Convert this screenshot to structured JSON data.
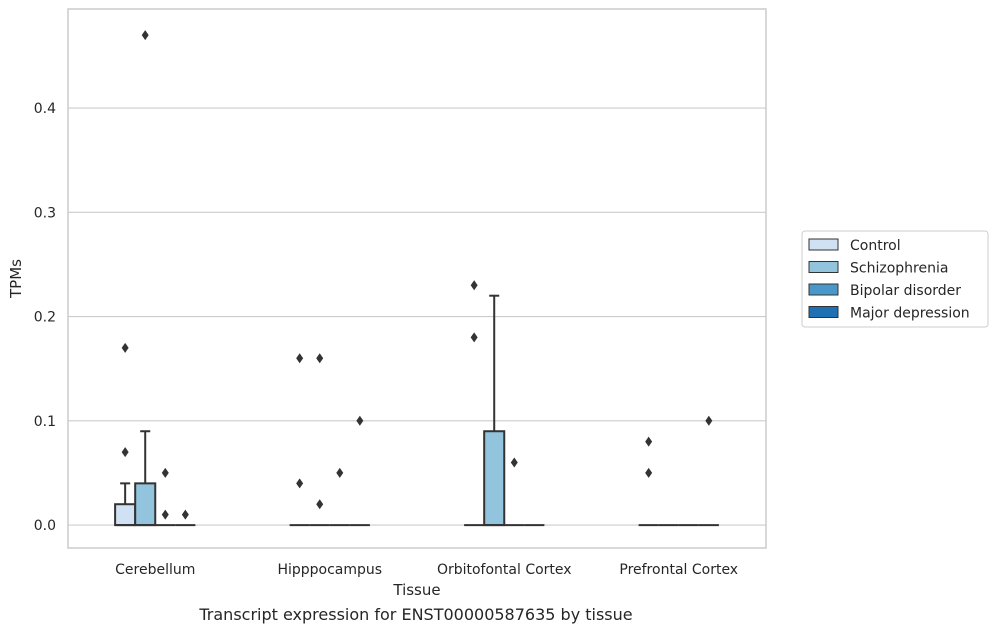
{
  "caption": "Transcript expression for ENST00000587635 by tissue",
  "chart_data": {
    "type": "box",
    "xlabel": "Tissue",
    "ylabel": "TPMs",
    "categories": [
      "Cerebellum",
      "Hipppocampus",
      "Orbitofontal Cortex",
      "Prefrontal Cortex"
    ],
    "ylim": [
      -0.022,
      0.495
    ],
    "yticks": [
      0.0,
      0.1,
      0.2,
      0.3,
      0.4
    ],
    "ytick_labels": [
      "0.0",
      "0.1",
      "0.2",
      "0.3",
      "0.4"
    ],
    "grid": "horizontal",
    "legend_position": "right",
    "series": [
      {
        "name": "Control",
        "color": "#cfe1f2",
        "boxes": [
          {
            "category": "Cerebellum",
            "q1": 0.0,
            "median": 0.0,
            "q3": 0.02,
            "whisker_low": 0.0,
            "whisker_high": 0.04,
            "outliers": [
              0.07,
              0.17
            ]
          },
          {
            "category": "Hipppocampus",
            "q1": 0.0,
            "median": 0.0,
            "q3": 0.0,
            "whisker_low": 0.0,
            "whisker_high": 0.0,
            "outliers": [
              0.04,
              0.16
            ]
          },
          {
            "category": "Orbitofontal Cortex",
            "q1": 0.0,
            "median": 0.0,
            "q3": 0.0,
            "whisker_low": 0.0,
            "whisker_high": 0.0,
            "outliers": [
              0.18,
              0.23
            ]
          },
          {
            "category": "Prefrontal Cortex",
            "q1": 0.0,
            "median": 0.0,
            "q3": 0.0,
            "whisker_low": 0.0,
            "whisker_high": 0.0,
            "outliers": [
              0.05,
              0.08
            ]
          }
        ]
      },
      {
        "name": "Schizophrenia",
        "color": "#93c4de",
        "boxes": [
          {
            "category": "Cerebellum",
            "q1": 0.0,
            "median": 0.0,
            "q3": 0.04,
            "whisker_low": 0.0,
            "whisker_high": 0.09,
            "outliers": [
              0.47
            ]
          },
          {
            "category": "Hipppocampus",
            "q1": 0.0,
            "median": 0.0,
            "q3": 0.0,
            "whisker_low": 0.0,
            "whisker_high": 0.0,
            "outliers": [
              0.02,
              0.16
            ]
          },
          {
            "category": "Orbitofontal Cortex",
            "q1": 0.0,
            "median": 0.0,
            "q3": 0.09,
            "whisker_low": 0.0,
            "whisker_high": 0.22,
            "outliers": []
          },
          {
            "category": "Prefrontal Cortex",
            "q1": 0.0,
            "median": 0.0,
            "q3": 0.0,
            "whisker_low": 0.0,
            "whisker_high": 0.0,
            "outliers": []
          }
        ]
      },
      {
        "name": "Bipolar disorder",
        "color": "#4a98c9",
        "boxes": [
          {
            "category": "Cerebellum",
            "q1": 0.0,
            "median": 0.0,
            "q3": 0.0,
            "whisker_low": 0.0,
            "whisker_high": 0.0,
            "outliers": [
              0.01,
              0.05
            ]
          },
          {
            "category": "Hipppocampus",
            "q1": 0.0,
            "median": 0.0,
            "q3": 0.0,
            "whisker_low": 0.0,
            "whisker_high": 0.0,
            "outliers": [
              0.05
            ]
          },
          {
            "category": "Orbitofontal Cortex",
            "q1": 0.0,
            "median": 0.0,
            "q3": 0.0,
            "whisker_low": 0.0,
            "whisker_high": 0.0,
            "outliers": [
              0.06
            ]
          },
          {
            "category": "Prefrontal Cortex",
            "q1": 0.0,
            "median": 0.0,
            "q3": 0.0,
            "whisker_low": 0.0,
            "whisker_high": 0.0,
            "outliers": []
          }
        ]
      },
      {
        "name": "Major depression",
        "color": "#2070b4",
        "boxes": [
          {
            "category": "Cerebellum",
            "q1": 0.0,
            "median": 0.0,
            "q3": 0.0,
            "whisker_low": 0.0,
            "whisker_high": 0.0,
            "outliers": [
              0.01
            ]
          },
          {
            "category": "Hipppocampus",
            "q1": 0.0,
            "median": 0.0,
            "q3": 0.0,
            "whisker_low": 0.0,
            "whisker_high": 0.0,
            "outliers": [
              0.1
            ]
          },
          {
            "category": "Orbitofontal Cortex",
            "q1": 0.0,
            "median": 0.0,
            "q3": 0.0,
            "whisker_low": 0.0,
            "whisker_high": 0.0,
            "outliers": []
          },
          {
            "category": "Prefrontal Cortex",
            "q1": 0.0,
            "median": 0.0,
            "q3": 0.0,
            "whisker_low": 0.0,
            "whisker_high": 0.0,
            "outliers": [
              0.1
            ]
          }
        ]
      }
    ]
  }
}
